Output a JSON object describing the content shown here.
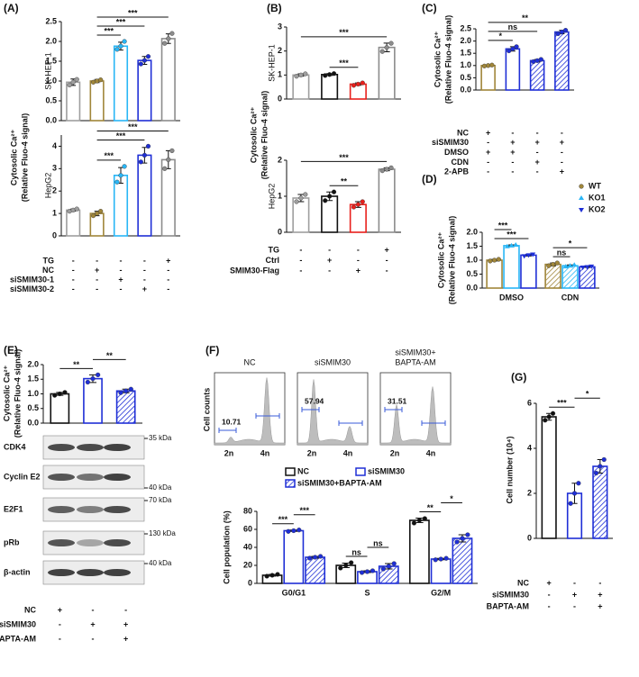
{
  "chart_data": [
    {
      "type": "bar",
      "panel": "(A)",
      "ylabel": [
        "Cytosolic Ca²⁺",
        "(Relative Fluo-4 signal)"
      ],
      "cell_line": "SK-HEP-1",
      "categories": [
        null,
        null,
        null,
        null,
        null
      ],
      "values": [
        0.97,
        1.0,
        1.88,
        1.52,
        2.07
      ],
      "errors": [
        0.08,
        0.04,
        0.1,
        0.1,
        0.12
      ],
      "points": [
        [
          0.9,
          0.97,
          1.04
        ],
        [
          0.97,
          1.0,
          1.03
        ],
        [
          1.8,
          1.88,
          2.0
        ],
        [
          1.43,
          1.52,
          1.62
        ],
        [
          1.95,
          2.07,
          2.2
        ]
      ],
      "colors": [
        "#9e9e9e",
        "#a0863a",
        "#29b6f6",
        "#1f2fd6",
        "#8c8c8c"
      ],
      "ylim": [
        0,
        2.5
      ],
      "yticks": [
        {
          "value": 0,
          "label": "0.0"
        },
        0.5,
        {
          "value": 1,
          "label": "1.0"
        },
        1.5,
        {
          "value": 2,
          "label": "2.0"
        },
        2.5
      ],
      "significance": [
        {
          "pair": [
            1,
            2
          ],
          "label": "***"
        },
        {
          "pair": [
            1,
            3
          ],
          "label": "***"
        },
        {
          "pair": [
            1,
            4
          ],
          "label": "***"
        }
      ]
    },
    {
      "type": "bar",
      "cell_line": "HepG2",
      "categories": [
        null,
        null,
        null,
        null,
        null
      ],
      "values": [
        1.15,
        1.0,
        2.7,
        3.6,
        3.4
      ],
      "errors": [
        0.05,
        0.1,
        0.35,
        0.35,
        0.4
      ],
      "points": [
        [
          1.1,
          1.15,
          1.2
        ],
        [
          0.9,
          1.0,
          1.1
        ],
        [
          2.4,
          2.7,
          3.1
        ],
        [
          3.3,
          3.6,
          4.0
        ],
        [
          3.0,
          3.4,
          3.8
        ]
      ],
      "colors": [
        "#9e9e9e",
        "#a0863a",
        "#29b6f6",
        "#1f2fd6",
        "#8c8c8c"
      ],
      "ylim": [
        0,
        4.5
      ],
      "yticks": [
        0,
        1,
        2,
        3,
        4
      ],
      "significance": [
        {
          "pair": [
            1,
            2
          ],
          "label": "***"
        },
        {
          "pair": [
            1,
            3
          ],
          "label": "***"
        },
        {
          "pair": [
            1,
            4
          ],
          "label": "***"
        }
      ],
      "conditions": [
        {
          "label": "TG",
          "signs": [
            "-",
            "-",
            "-",
            "-",
            "+"
          ]
        },
        {
          "label": "NC",
          "signs": [
            "-",
            "+",
            "-",
            "-",
            "-"
          ]
        },
        {
          "label": "siSMIM30-1",
          "signs": [
            "-",
            "-",
            "+",
            "-",
            "-"
          ]
        },
        {
          "label": "siSMIM30-2",
          "signs": [
            "-",
            "-",
            "-",
            "+",
            "-"
          ]
        }
      ]
    },
    {
      "type": "bar",
      "panel": "(B)",
      "ylabel": [
        "Cytosolic Ca²⁺",
        "(Relative Fluo-4 signal)"
      ],
      "cell_line": "SK-HEP-1",
      "categories": [
        null,
        null,
        null,
        null
      ],
      "values": [
        1.0,
        1.02,
        0.62,
        2.15
      ],
      "errors": [
        0.05,
        0.04,
        0.05,
        0.18
      ],
      "points": [
        [
          0.95,
          1.0,
          1.05
        ],
        [
          0.98,
          1.02,
          1.06
        ],
        [
          0.57,
          0.62,
          0.67
        ],
        [
          1.98,
          2.15,
          2.32
        ]
      ],
      "colors": [
        "#9e9e9e",
        "#111111",
        "#e8201c",
        "#8c8c8c"
      ],
      "ylim": [
        0,
        3
      ],
      "yticks": [
        0,
        1,
        2,
        3
      ],
      "significance": [
        {
          "pair": [
            1,
            2
          ],
          "label": "***"
        },
        {
          "pair": [
            0,
            3
          ],
          "label": "***"
        }
      ]
    },
    {
      "type": "bar",
      "cell_line": "HepG2",
      "categories": [
        null,
        null,
        null,
        null
      ],
      "values": [
        0.95,
        1.0,
        0.77,
        1.75
      ],
      "errors": [
        0.1,
        0.12,
        0.08,
        0.04
      ],
      "points": [
        [
          0.85,
          0.95,
          1.05
        ],
        [
          0.88,
          1.0,
          1.12
        ],
        [
          0.7,
          0.77,
          0.85
        ],
        [
          1.71,
          1.75,
          1.79
        ]
      ],
      "colors": [
        "#9e9e9e",
        "#111111",
        "#e8201c",
        "#8c8c8c"
      ],
      "ylim": [
        0,
        2
      ],
      "yticks": [
        0,
        1,
        2
      ],
      "significance": [
        {
          "pair": [
            1,
            2
          ],
          "label": "**"
        },
        {
          "pair": [
            0,
            3
          ],
          "label": "***"
        }
      ],
      "conditions": [
        {
          "label": "TG",
          "signs": [
            "-",
            "-",
            "-",
            "+"
          ]
        },
        {
          "label": "Ctrl",
          "signs": [
            "-",
            "+",
            "-",
            "-"
          ]
        },
        {
          "label": "SMIM30-Flag",
          "signs": [
            "-",
            "-",
            "+",
            "-"
          ]
        }
      ]
    },
    {
      "type": "bar",
      "panel": "(C)",
      "ylabel": [
        "Cytosolic Ca²⁺",
        "(Relative Fluo-4 signal)"
      ],
      "categories": [
        null,
        null,
        null,
        null
      ],
      "values": [
        1.0,
        1.68,
        1.2,
        2.37
      ],
      "errors": [
        0.03,
        0.09,
        0.05,
        0.07
      ],
      "points": [
        [
          0.98,
          1.0,
          1.02
        ],
        [
          1.6,
          1.68,
          1.77
        ],
        [
          1.16,
          1.2,
          1.25
        ],
        [
          2.3,
          2.37,
          2.44
        ]
      ],
      "colors": [
        "#a0863a",
        "#1f2fd6",
        "#1f2fd6",
        "#1f2fd6"
      ],
      "hatched": [
        false,
        false,
        true,
        true
      ],
      "ylim": [
        0,
        2.5
      ],
      "yticks": [
        {
          "value": 0,
          "label": "0.0"
        },
        0.5,
        {
          "value": 1,
          "label": "1.0"
        },
        1.5,
        {
          "value": 2,
          "label": "2.0"
        },
        2.5
      ],
      "significance": [
        {
          "pair": [
            0,
            1
          ],
          "label": "*"
        },
        {
          "pair": [
            0,
            2
          ],
          "label": "ns"
        },
        {
          "pair": [
            0,
            3
          ],
          "label": "**"
        }
      ],
      "conditions": [
        {
          "label": "NC",
          "signs": [
            "+",
            "-",
            "-",
            "-"
          ]
        },
        {
          "label": "siSMIM30",
          "signs": [
            "-",
            "+",
            "+",
            "+"
          ]
        },
        {
          "label": "DMSO",
          "signs": [
            "+",
            "+",
            "-",
            "-"
          ]
        },
        {
          "label": "CDN",
          "signs": [
            "-",
            "-",
            "+",
            "-"
          ]
        },
        {
          "label": "2-APB",
          "signs": [
            "-",
            "-",
            "-",
            "+"
          ]
        }
      ]
    },
    {
      "type": "grouped-bar",
      "panel": "(D)",
      "ylabel": [
        "Cytosolic Ca²⁺",
        "(Relative Fluo-4 signal)"
      ],
      "categories": [
        "DMSO",
        "CDN"
      ],
      "category_hatched": [
        false,
        true
      ],
      "series": [
        {
          "name": "WT",
          "color": "#a0863a",
          "marker": "circle",
          "values": [
            1.0,
            0.85
          ],
          "errors": [
            0.03,
            0.05
          ],
          "points": [
            [
              0.97,
              1.0,
              1.03
            ],
            [
              0.8,
              0.85,
              0.9
            ]
          ]
        },
        {
          "name": "KO1",
          "color": "#29b6f6",
          "marker": "triangle-up",
          "values": [
            1.52,
            0.8
          ],
          "errors": [
            0.03,
            0.03
          ],
          "points": [
            [
              1.49,
              1.52,
              1.55
            ],
            [
              0.77,
              0.8,
              0.83
            ]
          ]
        },
        {
          "name": "KO2",
          "color": "#1f2fd6",
          "marker": "triangle-down",
          "values": [
            1.18,
            0.76
          ],
          "errors": [
            0.03,
            0.02
          ],
          "points": [
            [
              1.15,
              1.18,
              1.21
            ],
            [
              0.74,
              0.76,
              0.78
            ]
          ]
        }
      ],
      "ylim": [
        0,
        2
      ],
      "yticks": [
        {
          "value": 0,
          "label": "0.0"
        },
        0.5,
        {
          "value": 1,
          "label": "1.0"
        },
        1.5,
        {
          "value": 2,
          "label": "2.0"
        }
      ],
      "legend": "upper right",
      "significance": [
        {
          "pair": [
            0,
            2
          ],
          "label": "***"
        },
        {
          "pair": [
            0,
            1
          ],
          "label": "***"
        },
        {
          "pair": [
            3,
            4
          ],
          "label": "ns"
        },
        {
          "pair": [
            3,
            5
          ],
          "label": "*"
        }
      ]
    },
    {
      "type": "bar",
      "panel": "(E)",
      "ylabel": [
        "Cytosolic Ca²⁺",
        "(Relative Fluo-4 signal)"
      ],
      "categories": [
        null,
        null,
        null
      ],
      "values": [
        1.0,
        1.52,
        1.1
      ],
      "errors": [
        0.05,
        0.13,
        0.06
      ],
      "points": [
        [
          0.95,
          1.0,
          1.05
        ],
        [
          1.4,
          1.52,
          1.65
        ],
        [
          1.04,
          1.1,
          1.16
        ]
      ],
      "colors": [
        "#111111",
        "#1f2fd6",
        "#1f2fd6"
      ],
      "hatched": [
        false,
        false,
        true
      ],
      "ylim": [
        0,
        2
      ],
      "yticks": [
        {
          "value": 0,
          "label": "0.0"
        },
        0.5,
        {
          "value": 1,
          "label": "1.0"
        },
        1.5,
        {
          "value": 2,
          "label": "2.0"
        }
      ],
      "significance": [
        {
          "pair": [
            0,
            1
          ],
          "label": "**"
        },
        {
          "pair": [
            1,
            2
          ],
          "label": "**"
        }
      ],
      "conditions": [
        {
          "label": "NC",
          "signs": [
            "+",
            "-",
            "-"
          ]
        },
        {
          "label": "siSMIM30",
          "signs": [
            "-",
            "+",
            "+"
          ]
        },
        {
          "label": "BAPTA-AM",
          "signs": [
            "-",
            "-",
            "+"
          ]
        }
      ]
    },
    {
      "type": "grouped-bar",
      "ylabel": [
        "Cell population (%)"
      ],
      "categories": [
        "G0/G1",
        "S",
        "G2/M"
      ],
      "series": [
        {
          "name": "NC",
          "color": "#111111",
          "hatched": false,
          "values": [
            9,
            20,
            70
          ],
          "errors": [
            1,
            2.5,
            2.5
          ],
          "points": [
            [
              8,
              9,
              10
            ],
            [
              17,
              20,
              23
            ],
            [
              67,
              70,
              72
            ]
          ]
        },
        {
          "name": "siSMIM30",
          "color": "#1f2fd6",
          "hatched": false,
          "values": [
            58.5,
            13,
            27
          ],
          "errors": [
            0.8,
            1,
            0.8
          ],
          "points": [
            [
              57.7,
              58.5,
              59.3
            ],
            [
              12,
              13,
              14
            ],
            [
              26.2,
              27,
              27.8
            ]
          ]
        },
        {
          "name": "siSMIM30+BAPTA-AM",
          "color": "#1f2fd6",
          "hatched": true,
          "values": [
            29,
            19,
            50
          ],
          "errors": [
            1,
            3,
            4
          ],
          "points": [
            [
              28,
              29,
              30
            ],
            [
              16,
              19,
              22
            ],
            [
              46,
              50,
              54
            ]
          ]
        }
      ],
      "ylim": [
        0,
        80
      ],
      "yticks": [
        0,
        20,
        40,
        60,
        80
      ],
      "legend": "top",
      "significance": [
        {
          "pair": [
            0,
            1
          ],
          "label": "***"
        },
        {
          "pair": [
            1,
            2
          ],
          "label": "***"
        },
        {
          "pair": [
            3,
            4
          ],
          "label": "ns"
        },
        {
          "pair": [
            4,
            5
          ],
          "label": "ns"
        },
        {
          "pair": [
            6,
            7
          ],
          "label": "**"
        },
        {
          "pair": [
            7,
            8
          ],
          "label": "*"
        }
      ]
    },
    {
      "type": "bar",
      "panel": "(G)",
      "ylabel": [
        "Cell number (10⁴)"
      ],
      "categories": [
        null,
        null,
        null
      ],
      "values": [
        5.4,
        2.0,
        3.2
      ],
      "errors": [
        0.15,
        0.45,
        0.3
      ],
      "points": [
        [
          5.25,
          5.4,
          5.55
        ],
        [
          1.55,
          2.0,
          2.45
        ],
        [
          2.9,
          3.2,
          3.5
        ]
      ],
      "colors": [
        "#111111",
        "#1f2fd6",
        "#1f2fd6"
      ],
      "hatched": [
        false,
        false,
        true
      ],
      "ylim": [
        0,
        6
      ],
      "yticks": [
        0,
        2,
        4,
        6
      ],
      "significance": [
        {
          "pair": [
            0,
            1
          ],
          "label": "***"
        },
        {
          "pair": [
            1,
            2
          ],
          "label": "*"
        }
      ],
      "conditions": [
        {
          "label": "NC",
          "signs": [
            "+",
            "-",
            "-"
          ]
        },
        {
          "label": "siSMIM30",
          "signs": [
            "-",
            "+",
            "+"
          ]
        },
        {
          "label": "BAPTA-AM",
          "signs": [
            "-",
            "-",
            "+"
          ]
        }
      ]
    }
  ],
  "blot": {
    "rows": [
      {
        "protein": "CDK4",
        "marker": "35 kDa"
      },
      {
        "protein": "Cyclin E2",
        "marker": "40 kDa"
      },
      {
        "protein": "E2F1",
        "marker": "70 kDa"
      },
      {
        "protein": "pRb",
        "marker": "130 kDa"
      },
      {
        "protein": "β-actin",
        "marker": "40 kDa"
      }
    ]
  },
  "flow": {
    "panel": "(F)",
    "ylabel": "Cell counts",
    "xticks": [
      "2n",
      "4n"
    ],
    "samples": [
      {
        "title": [
          "NC"
        ],
        "g1_percent": 10.71
      },
      {
        "title": [
          "siSMIM30"
        ],
        "g1_percent": 57.94
      },
      {
        "title": [
          "siSMIM30+",
          "BAPTA-AM"
        ],
        "g1_percent": 31.51
      }
    ]
  }
}
